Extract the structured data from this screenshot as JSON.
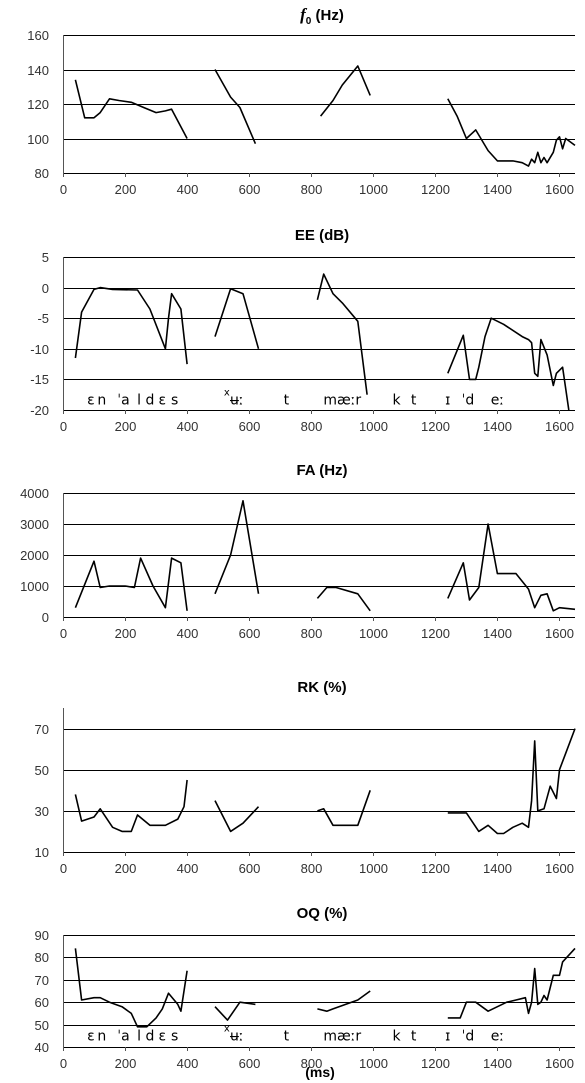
{
  "chart_data": [
    {
      "type": "line",
      "title_main": "f",
      "title_sub": "0",
      "title_rest": " (Hz)",
      "ylim": [
        80,
        160
      ],
      "yticks": [
        80,
        100,
        120,
        140,
        160
      ],
      "xlim": [
        0,
        1650
      ],
      "xticks": [
        0,
        200,
        400,
        600,
        800,
        1000,
        1200,
        1400,
        1600
      ],
      "segments": [
        [
          [
            40,
            134
          ],
          [
            70,
            112
          ],
          [
            100,
            112
          ],
          [
            120,
            115
          ],
          [
            150,
            123
          ],
          [
            180,
            122
          ],
          [
            220,
            121
          ],
          [
            260,
            118
          ],
          [
            300,
            115
          ],
          [
            330,
            116
          ],
          [
            350,
            117
          ],
          [
            400,
            100
          ]
        ],
        [
          [
            490,
            140
          ],
          [
            540,
            124
          ],
          [
            570,
            118
          ],
          [
            620,
            97
          ]
        ],
        [
          [
            830,
            113
          ],
          [
            870,
            122
          ],
          [
            900,
            131
          ],
          [
            950,
            142
          ],
          [
            990,
            125
          ]
        ],
        [
          [
            1240,
            123
          ],
          [
            1270,
            113
          ],
          [
            1300,
            100
          ],
          [
            1330,
            105
          ],
          [
            1370,
            93
          ],
          [
            1400,
            87
          ],
          [
            1450,
            87
          ],
          [
            1480,
            86
          ],
          [
            1500,
            84
          ],
          [
            1510,
            88
          ],
          [
            1520,
            86
          ],
          [
            1530,
            92
          ],
          [
            1540,
            86
          ],
          [
            1550,
            89
          ],
          [
            1560,
            86
          ],
          [
            1580,
            92
          ],
          [
            1590,
            99
          ],
          [
            1600,
            101
          ],
          [
            1610,
            94
          ],
          [
            1620,
            100
          ],
          [
            1650,
            96
          ]
        ]
      ]
    },
    {
      "type": "line",
      "title": "EE (dB)",
      "ylim": [
        -20,
        5
      ],
      "yticks": [
        -20,
        -15,
        -10,
        -5,
        0,
        5
      ],
      "xlim": [
        0,
        1650
      ],
      "xticks": [
        0,
        200,
        400,
        600,
        800,
        1000,
        1200,
        1400,
        1600
      ],
      "segments": [
        [
          [
            40,
            -11.5
          ],
          [
            60,
            -4
          ],
          [
            100,
            -0.3
          ],
          [
            120,
            0
          ],
          [
            160,
            -0.3
          ],
          [
            240,
            -0.4
          ],
          [
            280,
            -3.5
          ],
          [
            330,
            -10
          ],
          [
            340,
            -5
          ],
          [
            350,
            -1
          ],
          [
            380,
            -3.5
          ],
          [
            400,
            -12.5
          ]
        ],
        [
          [
            490,
            -8
          ],
          [
            540,
            -0.2
          ],
          [
            580,
            -1
          ],
          [
            630,
            -10
          ]
        ],
        [
          [
            820,
            -2
          ],
          [
            840,
            2.2
          ],
          [
            870,
            -1
          ],
          [
            900,
            -2.5
          ],
          [
            950,
            -5.5
          ],
          [
            980,
            -17.5
          ]
        ],
        [
          [
            1240,
            -14
          ],
          [
            1290,
            -7.8
          ],
          [
            1310,
            -15
          ],
          [
            1330,
            -15
          ],
          [
            1340,
            -13
          ],
          [
            1360,
            -8
          ],
          [
            1380,
            -5
          ],
          [
            1420,
            -6
          ],
          [
            1480,
            -8
          ],
          [
            1500,
            -8.5
          ],
          [
            1510,
            -9
          ],
          [
            1520,
            -14
          ],
          [
            1530,
            -14.5
          ],
          [
            1540,
            -8.5
          ],
          [
            1560,
            -11
          ],
          [
            1580,
            -16
          ],
          [
            1590,
            -14
          ],
          [
            1610,
            -13
          ],
          [
            1630,
            -20
          ]
        ]
      ]
    },
    {
      "type": "line",
      "title": "FA (Hz)",
      "ylim": [
        0,
        4000
      ],
      "yticks": [
        0,
        1000,
        2000,
        3000,
        4000
      ],
      "xlim": [
        0,
        1650
      ],
      "xticks": [
        0,
        200,
        400,
        600,
        800,
        1000,
        1200,
        1400,
        1600
      ],
      "segments": [
        [
          [
            40,
            300
          ],
          [
            100,
            1800
          ],
          [
            120,
            950
          ],
          [
            150,
            1000
          ],
          [
            200,
            1000
          ],
          [
            230,
            950
          ],
          [
            250,
            1900
          ],
          [
            290,
            1000
          ],
          [
            330,
            300
          ],
          [
            350,
            1900
          ],
          [
            380,
            1750
          ],
          [
            400,
            200
          ]
        ],
        [
          [
            490,
            750
          ],
          [
            540,
            2000
          ],
          [
            580,
            3750
          ],
          [
            630,
            750
          ]
        ],
        [
          [
            820,
            600
          ],
          [
            850,
            950
          ],
          [
            880,
            950
          ],
          [
            950,
            750
          ],
          [
            990,
            200
          ]
        ],
        [
          [
            1240,
            600
          ],
          [
            1290,
            1750
          ],
          [
            1310,
            550
          ],
          [
            1340,
            950
          ],
          [
            1370,
            3000
          ],
          [
            1400,
            1400
          ],
          [
            1460,
            1400
          ],
          [
            1500,
            900
          ],
          [
            1520,
            300
          ],
          [
            1540,
            700
          ],
          [
            1560,
            750
          ],
          [
            1580,
            200
          ],
          [
            1600,
            300
          ],
          [
            1650,
            250
          ]
        ]
      ]
    },
    {
      "type": "line",
      "title": "RK (%)",
      "ylim": [
        10,
        80
      ],
      "yticks": [
        10,
        30,
        50,
        70
      ],
      "xlim": [
        0,
        1650
      ],
      "xticks": [
        0,
        200,
        400,
        600,
        800,
        1000,
        1200,
        1400,
        1600
      ],
      "segments": [
        [
          [
            40,
            38
          ],
          [
            60,
            25
          ],
          [
            100,
            27
          ],
          [
            120,
            31
          ],
          [
            160,
            22
          ],
          [
            190,
            20
          ],
          [
            220,
            20
          ],
          [
            240,
            28
          ],
          [
            280,
            23
          ],
          [
            330,
            23
          ],
          [
            370,
            26
          ],
          [
            390,
            32
          ],
          [
            400,
            45
          ]
        ],
        [
          [
            490,
            35
          ],
          [
            540,
            20
          ],
          [
            580,
            24
          ],
          [
            630,
            32
          ]
        ],
        [
          [
            820,
            30
          ],
          [
            840,
            31
          ],
          [
            870,
            23
          ],
          [
            950,
            23
          ],
          [
            990,
            40
          ]
        ],
        [
          [
            1240,
            29
          ],
          [
            1300,
            29
          ],
          [
            1340,
            20
          ],
          [
            1370,
            23
          ],
          [
            1400,
            19
          ],
          [
            1420,
            19
          ],
          [
            1450,
            22
          ],
          [
            1480,
            24
          ],
          [
            1500,
            22
          ],
          [
            1510,
            35
          ],
          [
            1520,
            64
          ],
          [
            1530,
            30
          ],
          [
            1550,
            31
          ],
          [
            1570,
            42
          ],
          [
            1590,
            36
          ],
          [
            1600,
            50
          ],
          [
            1620,
            58
          ],
          [
            1650,
            70
          ]
        ]
      ]
    },
    {
      "type": "line",
      "title": "OQ (%)",
      "ylim": [
        40,
        90
      ],
      "yticks": [
        40,
        50,
        60,
        70,
        80,
        90
      ],
      "xlim": [
        0,
        1650
      ],
      "xticks": [
        0,
        200,
        400,
        600,
        800,
        1000,
        1200,
        1400,
        1600
      ],
      "segments": [
        [
          [
            40,
            84
          ],
          [
            60,
            61
          ],
          [
            100,
            62
          ],
          [
            120,
            62
          ],
          [
            150,
            60
          ],
          [
            190,
            58
          ],
          [
            220,
            55
          ],
          [
            240,
            49
          ],
          [
            270,
            49
          ],
          [
            300,
            53
          ],
          [
            320,
            57
          ],
          [
            340,
            64
          ],
          [
            370,
            59
          ],
          [
            380,
            56
          ],
          [
            400,
            74
          ]
        ],
        [
          [
            490,
            58
          ],
          [
            530,
            52
          ],
          [
            570,
            60
          ],
          [
            620,
            59
          ]
        ],
        [
          [
            820,
            57
          ],
          [
            850,
            56
          ],
          [
            870,
            57
          ],
          [
            950,
            61
          ],
          [
            990,
            65
          ]
        ],
        [
          [
            1240,
            53
          ],
          [
            1280,
            53
          ],
          [
            1300,
            60
          ],
          [
            1330,
            60
          ],
          [
            1370,
            56
          ],
          [
            1400,
            58
          ],
          [
            1430,
            60
          ],
          [
            1460,
            61
          ],
          [
            1490,
            62
          ],
          [
            1500,
            55
          ],
          [
            1510,
            60
          ],
          [
            1520,
            75
          ],
          [
            1530,
            59
          ],
          [
            1540,
            60
          ],
          [
            1550,
            63
          ],
          [
            1560,
            61
          ],
          [
            1580,
            72
          ],
          [
            1600,
            72
          ],
          [
            1610,
            78
          ],
          [
            1650,
            84
          ]
        ]
      ]
    }
  ],
  "phonetic_lines": [
    {
      "panel": 1,
      "y_value": -19.1,
      "glyphs": [
        {
          "t": "ɛ",
          "x": 90
        },
        {
          "t": "n",
          "x": 125
        },
        {
          "t": "ˈa",
          "x": 195
        },
        {
          "t": "l",
          "x": 245
        },
        {
          "t": "d",
          "x": 280
        },
        {
          "t": "ɛ",
          "x": 320
        },
        {
          "t": "s",
          "x": 360
        },
        {
          "t": "ʉː",
          "x": 560,
          "sup": "x",
          "supx": 528
        },
        {
          "t": "t",
          "x": 720
        },
        {
          "t": "mæːr",
          "x": 900
        },
        {
          "t": "k",
          "x": 1075
        },
        {
          "t": "t",
          "x": 1130
        },
        {
          "t": "ɪ",
          "x": 1240
        },
        {
          "t": "ˈd",
          "x": 1305
        },
        {
          "t": "eː",
          "x": 1400
        }
      ]
    },
    {
      "panel": 4,
      "y_value": 43,
      "glyphs": [
        {
          "t": "ɛ",
          "x": 90
        },
        {
          "t": "n",
          "x": 125
        },
        {
          "t": "ˈa",
          "x": 195
        },
        {
          "t": "l",
          "x": 245
        },
        {
          "t": "d",
          "x": 280
        },
        {
          "t": "ɛ",
          "x": 320
        },
        {
          "t": "s",
          "x": 360
        },
        {
          "t": "ʉː",
          "x": 560,
          "sup": "x",
          "supx": 528
        },
        {
          "t": "t",
          "x": 720
        },
        {
          "t": "mæːr",
          "x": 900
        },
        {
          "t": "k",
          "x": 1075
        },
        {
          "t": "t",
          "x": 1130
        },
        {
          "t": "ɪ",
          "x": 1240
        },
        {
          "t": "ˈd",
          "x": 1305
        },
        {
          "t": "eː",
          "x": 1400
        }
      ]
    }
  ],
  "x_unit_label": "(ms)"
}
